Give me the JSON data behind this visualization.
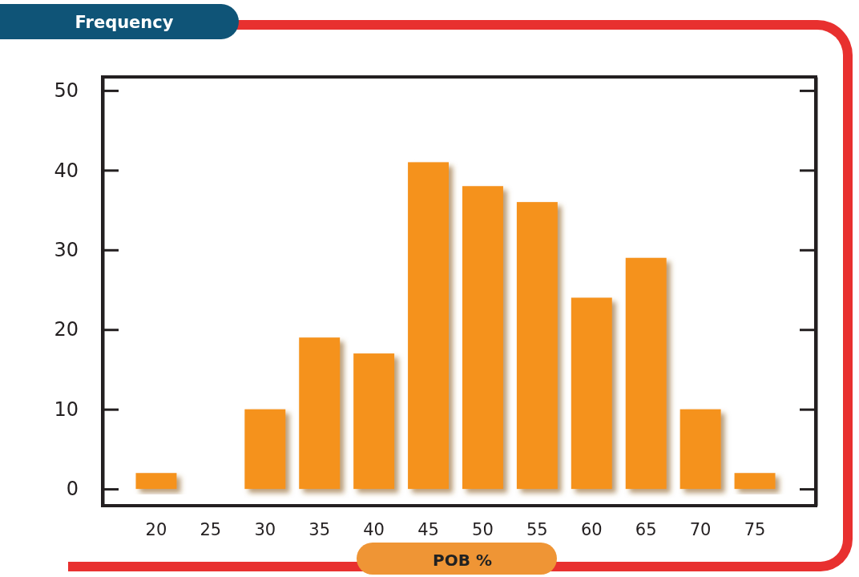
{
  "chart_data": {
    "type": "bar",
    "xlabel": "POB %",
    "ylabel": "Frequency",
    "categories": [
      "20",
      "25",
      "30",
      "35",
      "40",
      "45",
      "50",
      "55",
      "60",
      "65",
      "70",
      "75"
    ],
    "values": [
      2,
      0,
      10,
      19,
      17,
      41,
      38,
      36,
      24,
      29,
      10,
      2
    ],
    "color": "#f5921e",
    "ylim": [
      -2.1,
      51.7
    ],
    "yticks": [
      0,
      10,
      20,
      30,
      40,
      50
    ],
    "grid": false
  }
}
